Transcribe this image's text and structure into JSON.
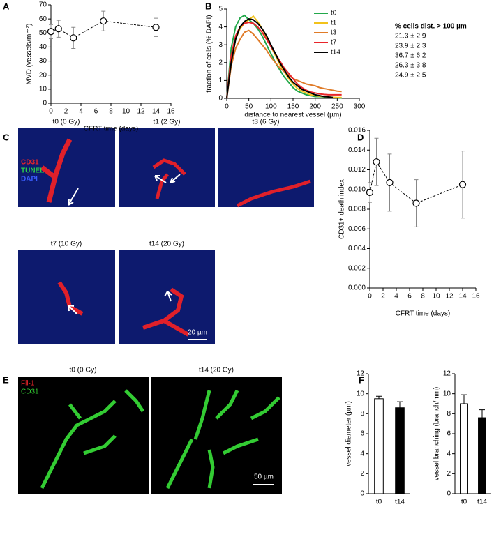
{
  "panel_letters": [
    "A",
    "B",
    "C",
    "D",
    "E",
    "F"
  ],
  "panel_c": {
    "labels": [
      "t0 (0 Gy)",
      "t1 (2 Gy)",
      "t3 (6 Gy)",
      "t7 (10 Gy)",
      "t14 (20 Gy)"
    ],
    "stains": [
      "CD31",
      "TUNEL",
      "DAPI"
    ],
    "scale_bar": "20 µm"
  },
  "panel_e": {
    "labels": [
      "t0 (0 Gy)",
      "t14 (20 Gy)"
    ],
    "stains": [
      "Fli-1",
      "CD31"
    ],
    "scale_bar": "50 µm"
  },
  "chart_data": [
    {
      "type": "line",
      "xlabel": "CFRT time (days)",
      "ylabel": "MVD (vessels/mm²)",
      "x": [
        0,
        1,
        3,
        7,
        14
      ],
      "values": [
        51,
        53,
        46.5,
        58.5,
        54
      ],
      "errors": [
        5,
        6,
        7.5,
        7,
        6.5
      ],
      "color": "#000000",
      "xlim": [
        0,
        16
      ],
      "xticks": [
        0,
        2,
        4,
        6,
        8,
        10,
        12,
        14,
        16
      ],
      "ylim": [
        0,
        70
      ],
      "yticks": [
        0,
        10,
        20,
        30,
        40,
        50,
        60,
        70
      ]
    },
    {
      "type": "line",
      "xlabel": "distance to nearest vessel (µm)",
      "ylabel": "fraction of cells (% DAPI)",
      "x": [
        0,
        10,
        20,
        30,
        40,
        50,
        60,
        70,
        80,
        90,
        100,
        110,
        120,
        130,
        140,
        150,
        160,
        170,
        180,
        190,
        200,
        210,
        220,
        230,
        240,
        250,
        260
      ],
      "series": [
        {
          "name": "t0",
          "color": "#22a84a",
          "values": [
            0,
            2.8,
            4.0,
            4.5,
            4.65,
            4.4,
            4.2,
            3.9,
            3.5,
            3.0,
            2.5,
            2.0,
            1.6,
            1.2,
            0.9,
            0.6,
            0.4,
            0.3,
            0.2,
            0.15,
            0.1,
            0.1,
            0.08,
            0.05,
            0.05,
            0.03,
            0.02
          ]
        },
        {
          "name": "t1",
          "color": "#f2c21b",
          "values": [
            0,
            2.2,
            3.3,
            3.9,
            4.2,
            4.4,
            4.6,
            4.3,
            3.9,
            3.4,
            2.9,
            2.4,
            1.9,
            1.5,
            1.1,
            0.8,
            0.55,
            0.4,
            0.3,
            0.2,
            0.15,
            0.12,
            0.1,
            0.08,
            0.06,
            0.05,
            0.05
          ]
        },
        {
          "name": "t3",
          "color": "#e07b28",
          "values": [
            0,
            1.8,
            2.8,
            3.3,
            3.7,
            3.8,
            3.6,
            3.3,
            3.0,
            2.7,
            2.3,
            2.0,
            1.7,
            1.5,
            1.3,
            1.1,
            1.0,
            0.9,
            0.8,
            0.75,
            0.7,
            0.6,
            0.55,
            0.5,
            0.45,
            0.4,
            0.38
          ]
        },
        {
          "name": "t7",
          "color": "#e8262a",
          "values": [
            0,
            2.4,
            3.5,
            4.0,
            4.2,
            4.25,
            4.2,
            4.0,
            3.7,
            3.3,
            2.9,
            2.5,
            2.1,
            1.7,
            1.4,
            1.1,
            0.8,
            0.6,
            0.45,
            0.35,
            0.3,
            0.25,
            0.22,
            0.2,
            0.2,
            0.2,
            0.2
          ]
        },
        {
          "name": "t14",
          "color": "#000000",
          "values": [
            0,
            2.0,
            3.3,
            4.0,
            4.3,
            4.45,
            4.4,
            4.2,
            3.9,
            3.5,
            3.0,
            2.5,
            2.0,
            1.6,
            1.2,
            0.9,
            0.7,
            0.5,
            0.4,
            0.3,
            0.2,
            0.15,
            0.1,
            0.08,
            0.05,
            null,
            null
          ]
        }
      ],
      "legend": "upper right",
      "annotation_title": "% cells dist. > 100 µm",
      "annotations": [
        "21.3 ± 2.9",
        "23.9 ± 2.3",
        "36.7 ± 6.2",
        "26.3 ± 3.8",
        "24.9 ± 2.5"
      ],
      "xlim": [
        0,
        300
      ],
      "xticks": [
        0,
        50,
        100,
        150,
        200,
        250,
        300
      ],
      "ylim": [
        0,
        5
      ],
      "yticks": [
        0,
        1,
        2,
        3,
        4,
        5
      ]
    },
    {
      "type": "line",
      "xlabel": "CFRT time (days)",
      "ylabel": "CD31+ death index",
      "x": [
        0,
        1,
        3,
        7,
        14
      ],
      "values": [
        0.0097,
        0.0128,
        0.0107,
        0.0086,
        0.0105
      ],
      "errors": [
        0.001,
        0.0024,
        0.0029,
        0.0024,
        0.0034
      ],
      "color": "#000000",
      "xlim": [
        0,
        16
      ],
      "xticks": [
        0,
        2,
        4,
        6,
        8,
        10,
        12,
        14,
        16
      ],
      "ylim": [
        0,
        0.016
      ],
      "yticks": [
        {
          "value": 0,
          "label": "0.000"
        },
        {
          "value": 0.002,
          "label": "0.002"
        },
        {
          "value": 0.004,
          "label": "0.004"
        },
        {
          "value": 0.006,
          "label": "0.006"
        },
        {
          "value": 0.008,
          "label": "0.008"
        },
        {
          "value": 0.01,
          "label": "0.010"
        },
        {
          "value": 0.012,
          "label": "0.012"
        },
        {
          "value": 0.014,
          "label": "0.014"
        },
        {
          "value": 0.016,
          "label": "0.016"
        }
      ]
    },
    {
      "type": "bar",
      "ylabel": "vessel diameter (µm)",
      "categories": [
        "t0",
        "t14"
      ],
      "values": [
        9.5,
        8.6
      ],
      "errors": [
        0.25,
        0.6
      ],
      "colors": [
        "#ffffff",
        "#000000"
      ],
      "ylim": [
        0,
        12
      ],
      "yticks": [
        0,
        2,
        4,
        6,
        8,
        10,
        12
      ]
    },
    {
      "type": "bar",
      "ylabel": "vessel branching (branch/mm)",
      "categories": [
        "t0",
        "t14"
      ],
      "values": [
        9.0,
        7.6
      ],
      "errors": [
        0.9,
        0.8
      ],
      "colors": [
        "#ffffff",
        "#000000"
      ],
      "ylim": [
        0,
        12
      ],
      "yticks": [
        0,
        2,
        4,
        6,
        8,
        10,
        12
      ]
    }
  ]
}
